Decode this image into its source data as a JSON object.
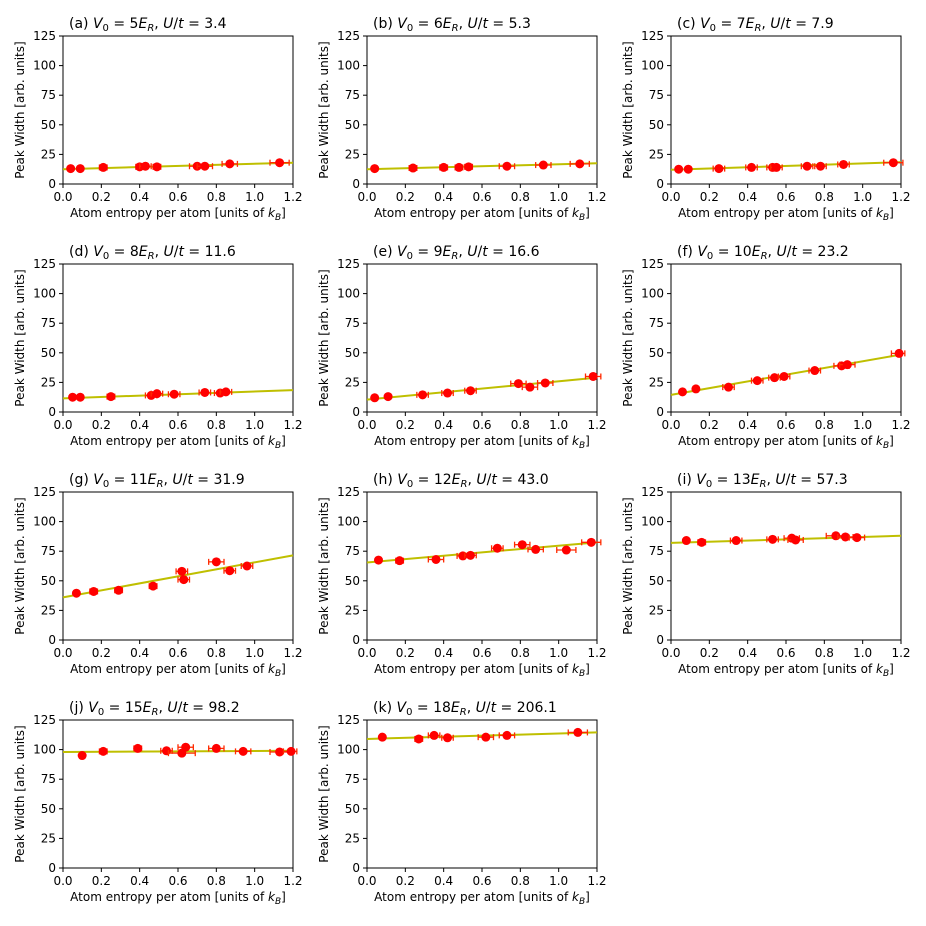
{
  "chart_data": [
    {
      "type": "scatter",
      "label": "(a)",
      "V0": "5",
      "Ut": "3.4",
      "xlabel": "Atom entropy per atom [units of k_B]",
      "ylabel": "Peak Width [arb. units]",
      "xlim": [
        0,
        1.2
      ],
      "ylim": [
        0,
        125
      ],
      "xticks": [
        "0.0",
        "0.2",
        "0.4",
        "0.6",
        "0.8",
        "1.0",
        "1.2"
      ],
      "yticks": [
        "0",
        "25",
        "50",
        "75",
        "100",
        "125"
      ],
      "fit": {
        "x": [
          0.0,
          1.2
        ],
        "y": [
          12.5,
          18.0
        ]
      },
      "points": [
        {
          "x": 0.04,
          "y": 13,
          "xerr": 0.01
        },
        {
          "x": 0.09,
          "y": 13,
          "xerr": 0.01
        },
        {
          "x": 0.21,
          "y": 14,
          "xerr": 0.02
        },
        {
          "x": 0.4,
          "y": 14.5,
          "xerr": 0.02
        },
        {
          "x": 0.43,
          "y": 15,
          "xerr": 0.03
        },
        {
          "x": 0.49,
          "y": 14.5,
          "xerr": 0.02
        },
        {
          "x": 0.7,
          "y": 15,
          "xerr": 0.04
        },
        {
          "x": 0.74,
          "y": 15,
          "xerr": 0.04
        },
        {
          "x": 0.87,
          "y": 17,
          "xerr": 0.04
        },
        {
          "x": 1.13,
          "y": 18,
          "xerr": 0.05
        }
      ]
    },
    {
      "type": "scatter",
      "label": "(b)",
      "V0": "6",
      "Ut": "5.3",
      "xlabel": "Atom entropy per atom [units of k_B]",
      "ylabel": "Peak Width [arb. units]",
      "xlim": [
        0,
        1.2
      ],
      "ylim": [
        0,
        125
      ],
      "xticks": [
        "0.0",
        "0.2",
        "0.4",
        "0.6",
        "0.8",
        "1.0",
        "1.2"
      ],
      "yticks": [
        "0",
        "25",
        "50",
        "75",
        "100",
        "125"
      ],
      "fit": {
        "x": [
          0.0,
          1.2
        ],
        "y": [
          12.5,
          17.5
        ]
      },
      "points": [
        {
          "x": 0.04,
          "y": 13,
          "xerr": 0.01
        },
        {
          "x": 0.24,
          "y": 13.5,
          "xerr": 0.02
        },
        {
          "x": 0.4,
          "y": 14,
          "xerr": 0.02
        },
        {
          "x": 0.48,
          "y": 14,
          "xerr": 0.02
        },
        {
          "x": 0.53,
          "y": 14.5,
          "xerr": 0.02
        },
        {
          "x": 0.73,
          "y": 15,
          "xerr": 0.04
        },
        {
          "x": 0.92,
          "y": 16,
          "xerr": 0.04
        },
        {
          "x": 1.11,
          "y": 17,
          "xerr": 0.05
        }
      ]
    },
    {
      "type": "scatter",
      "label": "(c)",
      "V0": "7",
      "Ut": "7.9",
      "xlabel": "Atom entropy per atom [units of k_B]",
      "ylabel": "Peak Width [arb. units]",
      "xlim": [
        0,
        1.2
      ],
      "ylim": [
        0,
        125
      ],
      "xticks": [
        "0.0",
        "0.2",
        "0.4",
        "0.6",
        "0.8",
        "1.0",
        "1.2"
      ],
      "yticks": [
        "0",
        "25",
        "50",
        "75",
        "100",
        "125"
      ],
      "fit": {
        "x": [
          0.0,
          1.2
        ],
        "y": [
          12.0,
          18.5
        ]
      },
      "points": [
        {
          "x": 0.04,
          "y": 12.5,
          "xerr": 0.01
        },
        {
          "x": 0.09,
          "y": 12.5,
          "xerr": 0.01
        },
        {
          "x": 0.25,
          "y": 13,
          "xerr": 0.03
        },
        {
          "x": 0.42,
          "y": 14,
          "xerr": 0.03
        },
        {
          "x": 0.53,
          "y": 14,
          "xerr": 0.03
        },
        {
          "x": 0.55,
          "y": 14,
          "xerr": 0.03
        },
        {
          "x": 0.71,
          "y": 15,
          "xerr": 0.03
        },
        {
          "x": 0.78,
          "y": 15,
          "xerr": 0.03
        },
        {
          "x": 0.9,
          "y": 16.5,
          "xerr": 0.03
        },
        {
          "x": 1.16,
          "y": 18,
          "xerr": 0.05
        }
      ]
    },
    {
      "type": "scatter",
      "label": "(d)",
      "V0": "8",
      "Ut": "11.6",
      "xlabel": "Atom entropy per atom [units of k_B]",
      "ylabel": "Peak Width [arb. units]",
      "xlim": [
        0,
        1.2
      ],
      "ylim": [
        0,
        125
      ],
      "xticks": [
        "0.0",
        "0.2",
        "0.4",
        "0.6",
        "0.8",
        "1.0",
        "1.2"
      ],
      "yticks": [
        "0",
        "25",
        "50",
        "75",
        "100",
        "125"
      ],
      "fit": {
        "x": [
          0.0,
          1.2
        ],
        "y": [
          11.5,
          18.5
        ]
      },
      "points": [
        {
          "x": 0.05,
          "y": 12.5,
          "xerr": 0.01
        },
        {
          "x": 0.09,
          "y": 12.5,
          "xerr": 0.01
        },
        {
          "x": 0.25,
          "y": 13,
          "xerr": 0.02
        },
        {
          "x": 0.46,
          "y": 14,
          "xerr": 0.03
        },
        {
          "x": 0.49,
          "y": 15.5,
          "xerr": 0.03
        },
        {
          "x": 0.58,
          "y": 15,
          "xerr": 0.03
        },
        {
          "x": 0.74,
          "y": 16.5,
          "xerr": 0.03
        },
        {
          "x": 0.82,
          "y": 16,
          "xerr": 0.03
        },
        {
          "x": 0.85,
          "y": 17,
          "xerr": 0.03
        }
      ]
    },
    {
      "type": "scatter",
      "label": "(e)",
      "V0": "9",
      "Ut": "16.6",
      "xlabel": "Atom entropy per atom [units of k_B]",
      "ylabel": "Peak Width [arb. units]",
      "xlim": [
        0,
        1.2
      ],
      "ylim": [
        0,
        125
      ],
      "xticks": [
        "0.0",
        "0.2",
        "0.4",
        "0.6",
        "0.8",
        "1.0",
        "1.2"
      ],
      "yticks": [
        "0",
        "25",
        "50",
        "75",
        "100",
        "125"
      ],
      "fit": {
        "x": [
          0.0,
          1.2
        ],
        "y": [
          10.5,
          29.0
        ]
      },
      "points": [
        {
          "x": 0.04,
          "y": 12,
          "xerr": 0.01
        },
        {
          "x": 0.11,
          "y": 13,
          "xerr": 0.01
        },
        {
          "x": 0.29,
          "y": 14.5,
          "xerr": 0.03
        },
        {
          "x": 0.42,
          "y": 16,
          "xerr": 0.03
        },
        {
          "x": 0.54,
          "y": 18,
          "xerr": 0.03
        },
        {
          "x": 0.79,
          "y": 24,
          "xerr": 0.04
        },
        {
          "x": 0.85,
          "y": 21,
          "xerr": 0.04
        },
        {
          "x": 0.93,
          "y": 24.5,
          "xerr": 0.04
        },
        {
          "x": 1.18,
          "y": 30,
          "xerr": 0.04
        }
      ]
    },
    {
      "type": "scatter",
      "label": "(f)",
      "V0": "10",
      "Ut": "23.2",
      "xlabel": "Atom entropy per atom [units of k_B]",
      "ylabel": "Peak Width [arb. units]",
      "xlim": [
        0,
        1.2
      ],
      "ylim": [
        0,
        125
      ],
      "xticks": [
        "0.0",
        "0.2",
        "0.4",
        "0.6",
        "0.8",
        "1.0",
        "1.2"
      ],
      "yticks": [
        "0",
        "25",
        "50",
        "75",
        "100",
        "125"
      ],
      "fit": {
        "x": [
          0.0,
          1.2
        ],
        "y": [
          14.5,
          48.5
        ]
      },
      "points": [
        {
          "x": 0.06,
          "y": 17,
          "xerr": 0.01
        },
        {
          "x": 0.13,
          "y": 19.5,
          "xerr": 0.01
        },
        {
          "x": 0.3,
          "y": 21,
          "xerr": 0.03
        },
        {
          "x": 0.45,
          "y": 26.5,
          "xerr": 0.03
        },
        {
          "x": 0.54,
          "y": 29,
          "xerr": 0.03
        },
        {
          "x": 0.59,
          "y": 30,
          "xerr": 0.03
        },
        {
          "x": 0.75,
          "y": 35,
          "xerr": 0.03
        },
        {
          "x": 0.89,
          "y": 39,
          "xerr": 0.04
        },
        {
          "x": 0.92,
          "y": 40,
          "xerr": 0.04
        },
        {
          "x": 1.19,
          "y": 49.5,
          "xerr": 0.04
        }
      ]
    },
    {
      "type": "scatter",
      "label": "(g)",
      "V0": "11",
      "Ut": "31.9",
      "xlabel": "Atom entropy per atom [units of k_B]",
      "ylabel": "Peak Width [arb. units]",
      "xlim": [
        0,
        1.2
      ],
      "ylim": [
        0,
        125
      ],
      "xticks": [
        "0.0",
        "0.2",
        "0.4",
        "0.6",
        "0.8",
        "1.0",
        "1.2"
      ],
      "yticks": [
        "0",
        "25",
        "50",
        "75",
        "100",
        "125"
      ],
      "fit": {
        "x": [
          0.0,
          1.2
        ],
        "y": [
          36.0,
          71.5
        ]
      },
      "points": [
        {
          "x": 0.07,
          "y": 39.5,
          "xerr": 0.01
        },
        {
          "x": 0.16,
          "y": 41,
          "xerr": 0.02
        },
        {
          "x": 0.29,
          "y": 42,
          "xerr": 0.02
        },
        {
          "x": 0.47,
          "y": 45.5,
          "xerr": 0.02
        },
        {
          "x": 0.62,
          "y": 58,
          "xerr": 0.03
        },
        {
          "x": 0.63,
          "y": 51,
          "xerr": 0.03
        },
        {
          "x": 0.8,
          "y": 66,
          "xerr": 0.04
        },
        {
          "x": 0.87,
          "y": 58.5,
          "xerr": 0.03
        },
        {
          "x": 0.96,
          "y": 62.5,
          "xerr": 0.03
        }
      ]
    },
    {
      "type": "scatter",
      "label": "(h)",
      "V0": "12",
      "Ut": "43.0",
      "xlabel": "Atom entropy per atom [units of k_B]",
      "ylabel": "Peak Width [arb. units]",
      "xlim": [
        0,
        1.2
      ],
      "ylim": [
        0,
        125
      ],
      "xticks": [
        "0.0",
        "0.2",
        "0.4",
        "0.6",
        "0.8",
        "1.0",
        "1.2"
      ],
      "yticks": [
        "0",
        "25",
        "50",
        "75",
        "100",
        "125"
      ],
      "fit": {
        "x": [
          0.0,
          1.2
        ],
        "y": [
          65.5,
          82.5
        ]
      },
      "points": [
        {
          "x": 0.06,
          "y": 67.5,
          "xerr": 0.01
        },
        {
          "x": 0.17,
          "y": 67,
          "xerr": 0.02
        },
        {
          "x": 0.36,
          "y": 68,
          "xerr": 0.04
        },
        {
          "x": 0.5,
          "y": 71,
          "xerr": 0.03
        },
        {
          "x": 0.54,
          "y": 71.5,
          "xerr": 0.03
        },
        {
          "x": 0.68,
          "y": 77.5,
          "xerr": 0.03
        },
        {
          "x": 0.81,
          "y": 80.5,
          "xerr": 0.04
        },
        {
          "x": 0.88,
          "y": 76.5,
          "xerr": 0.04
        },
        {
          "x": 1.04,
          "y": 76,
          "xerr": 0.05
        },
        {
          "x": 1.17,
          "y": 82.5,
          "xerr": 0.05
        }
      ]
    },
    {
      "type": "scatter",
      "label": "(i)",
      "V0": "13",
      "Ut": "57.3",
      "xlabel": "Atom entropy per atom [units of k_B]",
      "ylabel": "Peak Width [arb. units]",
      "xlim": [
        0,
        1.2
      ],
      "ylim": [
        0,
        125
      ],
      "xticks": [
        "0.0",
        "0.2",
        "0.4",
        "0.6",
        "0.8",
        "1.0",
        "1.2"
      ],
      "yticks": [
        "0",
        "25",
        "50",
        "75",
        "100",
        "125"
      ],
      "fit": {
        "x": [
          0.0,
          1.2
        ],
        "y": [
          82.0,
          88.0
        ]
      },
      "points": [
        {
          "x": 0.08,
          "y": 84,
          "xerr": 0.01
        },
        {
          "x": 0.16,
          "y": 82.5,
          "xerr": 0.02
        },
        {
          "x": 0.34,
          "y": 84,
          "xerr": 0.03
        },
        {
          "x": 0.53,
          "y": 85,
          "xerr": 0.03
        },
        {
          "x": 0.63,
          "y": 86,
          "xerr": 0.04
        },
        {
          "x": 0.65,
          "y": 84.5,
          "xerr": 0.04
        },
        {
          "x": 0.86,
          "y": 88,
          "xerr": 0.05
        },
        {
          "x": 0.91,
          "y": 87,
          "xerr": 0.04
        },
        {
          "x": 0.97,
          "y": 86.5,
          "xerr": 0.04
        }
      ]
    },
    {
      "type": "scatter",
      "label": "(j)",
      "V0": "15",
      "Ut": "98.2",
      "xlabel": "Atom entropy per atom [units of k_B]",
      "ylabel": "Peak Width [arb. units]",
      "xlim": [
        0,
        1.2
      ],
      "ylim": [
        0,
        125
      ],
      "xticks": [
        "0.0",
        "0.2",
        "0.4",
        "0.6",
        "0.8",
        "1.0",
        "1.2"
      ],
      "yticks": [
        "0",
        "25",
        "50",
        "75",
        "100",
        "125"
      ],
      "fit": {
        "x": [
          0.0,
          1.2
        ],
        "y": [
          98.0,
          99.0
        ]
      },
      "points": [
        {
          "x": 0.1,
          "y": 95,
          "xerr": 0.01
        },
        {
          "x": 0.21,
          "y": 98.5,
          "xerr": 0.02
        },
        {
          "x": 0.39,
          "y": 101,
          "xerr": 0.02
        },
        {
          "x": 0.54,
          "y": 99,
          "xerr": 0.03
        },
        {
          "x": 0.62,
          "y": 97,
          "xerr": 0.07
        },
        {
          "x": 0.64,
          "y": 102,
          "xerr": 0.04
        },
        {
          "x": 0.8,
          "y": 101,
          "xerr": 0.04
        },
        {
          "x": 0.94,
          "y": 98.5,
          "xerr": 0.04
        },
        {
          "x": 1.13,
          "y": 98,
          "xerr": 0.05
        },
        {
          "x": 1.19,
          "y": 98.5,
          "xerr": 0.04
        }
      ]
    },
    {
      "type": "scatter",
      "label": "(k)",
      "V0": "18",
      "Ut": "206.1",
      "xlabel": "Atom entropy per atom [units of k_B]",
      "ylabel": "Peak Width [arb. units]",
      "xlim": [
        0,
        1.2
      ],
      "ylim": [
        0,
        125
      ],
      "xticks": [
        "0.0",
        "0.2",
        "0.4",
        "0.6",
        "0.8",
        "1.0",
        "1.2"
      ],
      "yticks": [
        "0",
        "25",
        "50",
        "75",
        "100",
        "125"
      ],
      "fit": {
        "x": [
          0.0,
          1.2
        ],
        "y": [
          109.0,
          114.5
        ]
      },
      "points": [
        {
          "x": 0.08,
          "y": 110.5,
          "xerr": 0.01
        },
        {
          "x": 0.27,
          "y": 109,
          "xerr": 0.02
        },
        {
          "x": 0.35,
          "y": 112,
          "xerr": 0.03
        },
        {
          "x": 0.42,
          "y": 110,
          "xerr": 0.03
        },
        {
          "x": 0.62,
          "y": 110.5,
          "xerr": 0.04
        },
        {
          "x": 0.73,
          "y": 112,
          "xerr": 0.04
        },
        {
          "x": 1.1,
          "y": 114.5,
          "xerr": 0.05
        }
      ]
    }
  ]
}
